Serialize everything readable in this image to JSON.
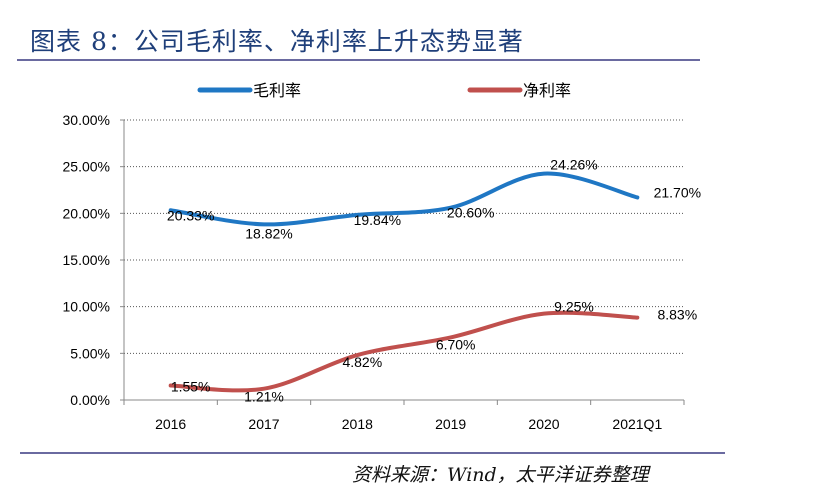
{
  "title": "图表 8：公司毛利率、净利率上升态势显著",
  "source": "资料来源：Wind，太平洋证券整理",
  "chart_data": {
    "type": "line",
    "categories": [
      "2016",
      "2017",
      "2018",
      "2019",
      "2020",
      "2021Q1"
    ],
    "series": [
      {
        "name": "毛利率",
        "color": "#1f77c4",
        "values": [
          20.33,
          18.82,
          19.84,
          20.6,
          24.26,
          21.7
        ],
        "labels": [
          "20.33%",
          "18.82%",
          "19.84%",
          "20.60%",
          "24.26%",
          "21.70%"
        ]
      },
      {
        "name": "净利率",
        "color": "#c0504d",
        "values": [
          1.55,
          1.21,
          4.82,
          6.7,
          9.25,
          8.83
        ],
        "labels": [
          "1.55%",
          "1.21%",
          "4.82%",
          "6.70%",
          "9.25%",
          "8.83%"
        ]
      }
    ],
    "ylim": [
      0,
      30
    ],
    "yticks": [
      "0.00%",
      "5.00%",
      "10.00%",
      "15.00%",
      "20.00%",
      "25.00%",
      "30.00%"
    ],
    "grid": "horizontal-dotted",
    "legend": "top",
    "smooth": true
  }
}
